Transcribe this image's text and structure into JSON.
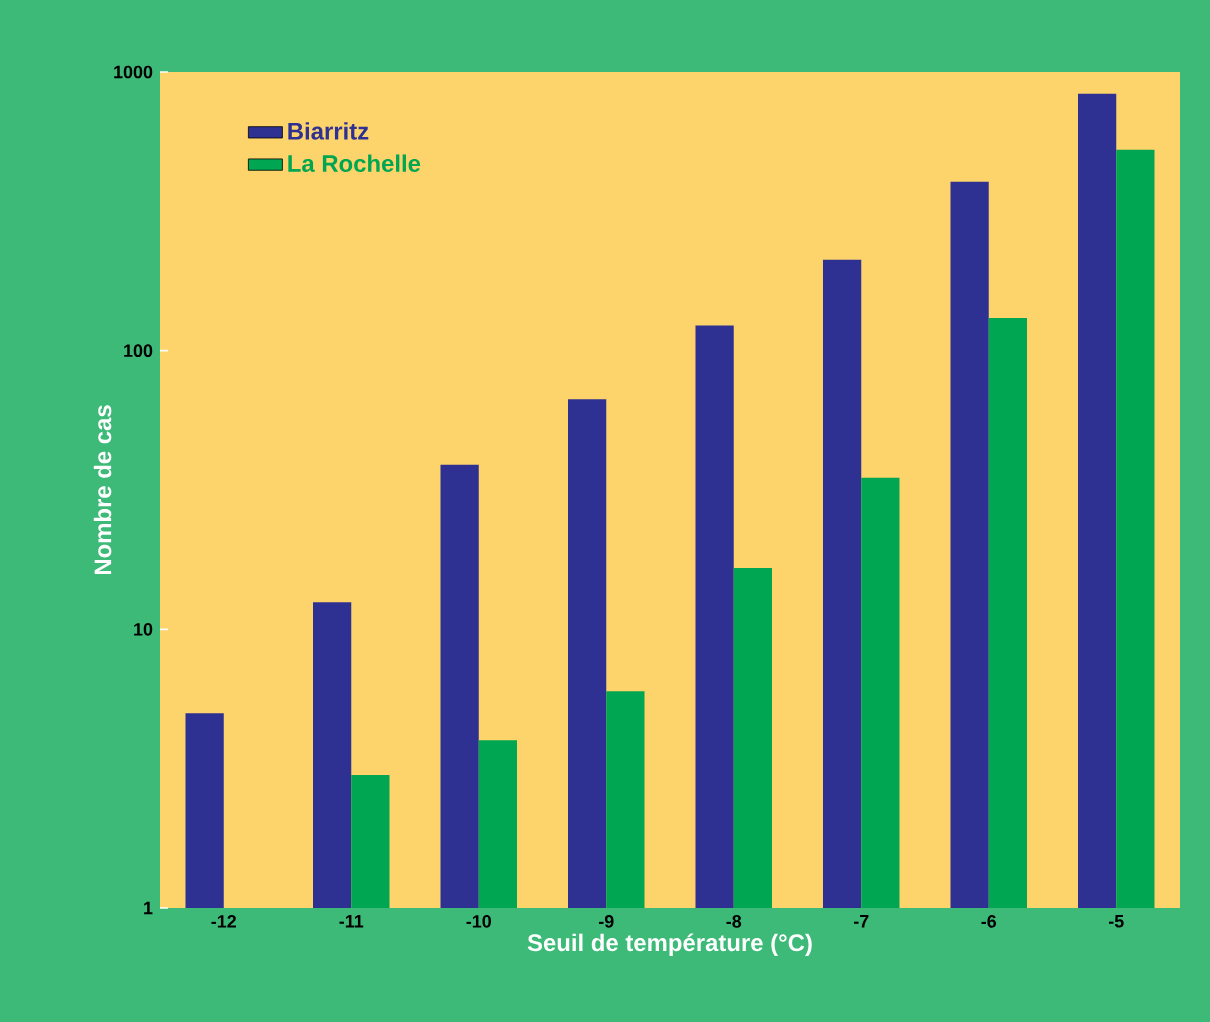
{
  "chart_data": {
    "type": "bar",
    "xlabel": "Seuil de température (°C)",
    "ylabel": "Nombre de cas",
    "categories": [
      "-12",
      "-11",
      "-10",
      "-9",
      "-8",
      "-7",
      "-6",
      "-5"
    ],
    "series": [
      {
        "name": "Biarritz",
        "color": "#2e3192",
        "values": [
          5,
          12.5,
          39,
          67,
          123,
          212,
          404,
          835
        ]
      },
      {
        "name": "La Rochelle",
        "color": "#00a651",
        "values": [
          null,
          3,
          4,
          6,
          16.6,
          35,
          131,
          526
        ]
      }
    ],
    "ylim": [
      1,
      1000
    ],
    "yticks": [
      1,
      10,
      100,
      1000
    ],
    "log": "y",
    "legend": "top left"
  }
}
